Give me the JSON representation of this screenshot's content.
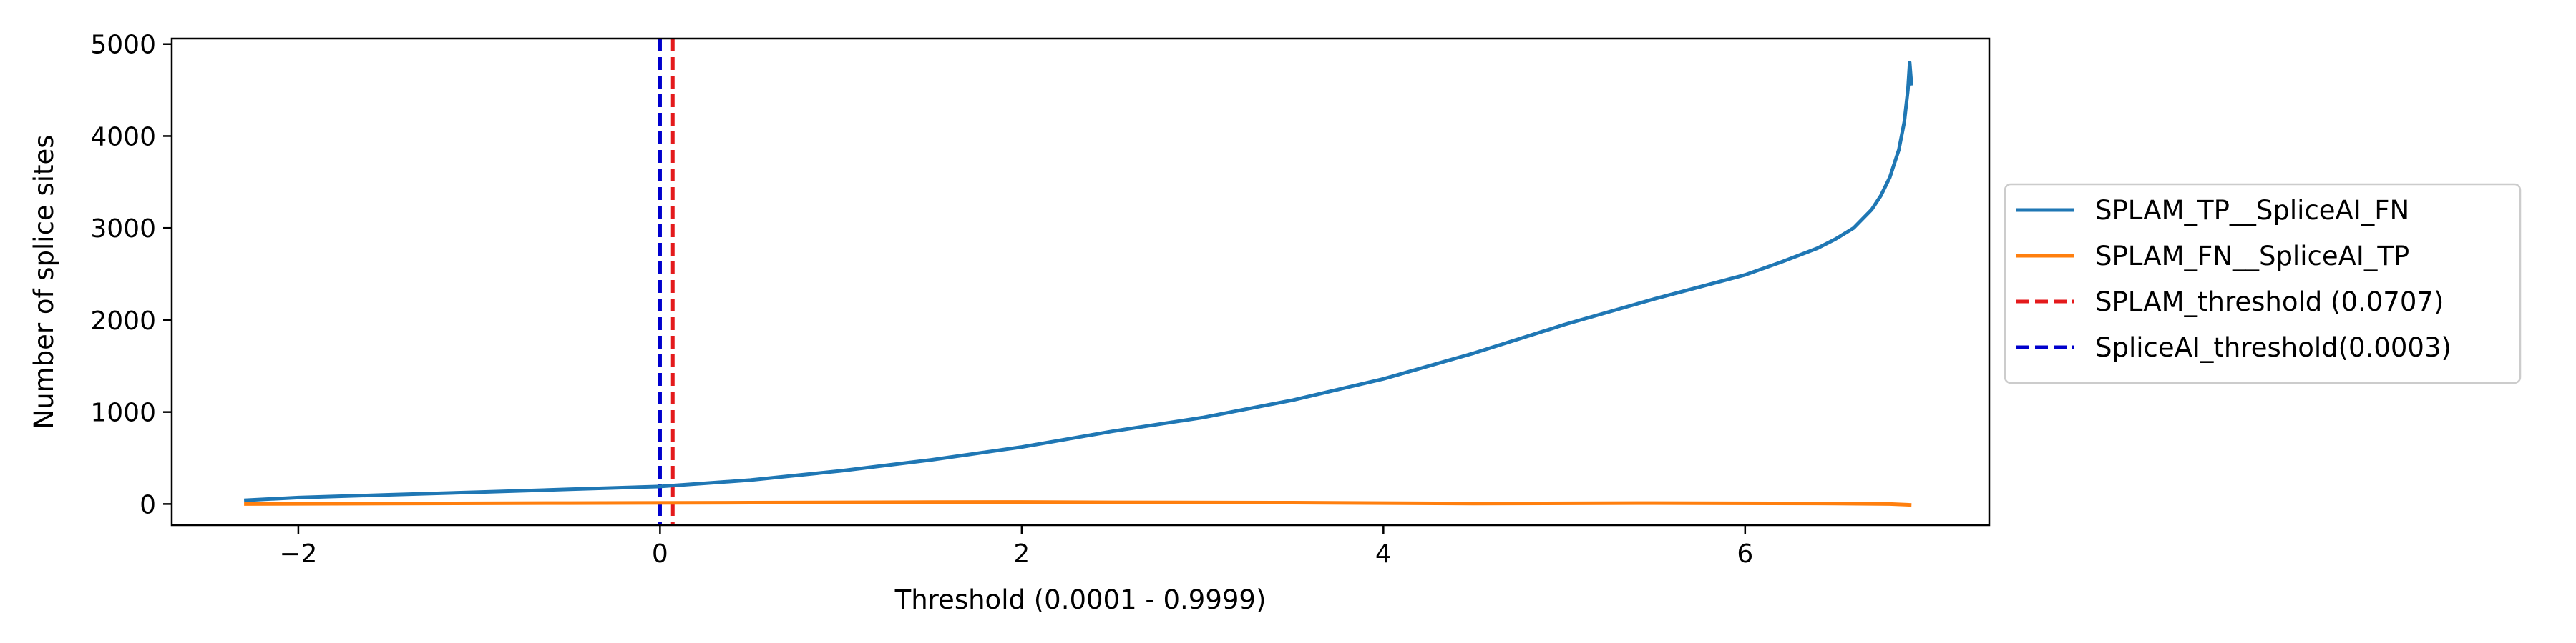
{
  "chart_data": {
    "type": "line",
    "title": "",
    "xlabel": "Threshold (0.0001 - 0.9999)",
    "ylabel": "Number of splice sites",
    "xlim": [
      -2.7,
      7.35
    ],
    "ylim": [
      -230,
      5060
    ],
    "xticks": [
      -2,
      0,
      2,
      4,
      6
    ],
    "xtick_labels": [
      "−2",
      "0",
      "2",
      "4",
      "6"
    ],
    "yticks": [
      0,
      1000,
      2000,
      3000,
      4000,
      5000
    ],
    "ytick_labels": [
      "0",
      "1000",
      "2000",
      "3000",
      "4000",
      "5000"
    ],
    "grid": false,
    "legend": "outside-right",
    "series": [
      {
        "name": "SPLAM_TP__SpliceAI_FN",
        "color": "#1f77b4",
        "style": "solid",
        "x": [
          -2.3,
          -2.0,
          -1.5,
          -1.0,
          -0.5,
          0.0,
          0.5,
          1.0,
          1.5,
          2.0,
          2.5,
          3.0,
          3.5,
          4.0,
          4.5,
          5.0,
          5.5,
          6.0,
          6.2,
          6.4,
          6.5,
          6.6,
          6.7,
          6.75,
          6.8,
          6.85,
          6.88,
          6.9,
          6.91,
          6.92
        ],
        "y": [
          40,
          70,
          100,
          130,
          160,
          190,
          260,
          360,
          480,
          620,
          790,
          940,
          1130,
          1360,
          1640,
          1950,
          2230,
          2490,
          2630,
          2780,
          2880,
          3000,
          3200,
          3350,
          3550,
          3850,
          4150,
          4500,
          4800,
          4550
        ]
      },
      {
        "name": "SPLAM_FN__SpliceAI_TP",
        "color": "#ff7f0e",
        "style": "solid",
        "x": [
          -2.3,
          -1.5,
          -0.5,
          0.5,
          1.5,
          2.0,
          2.5,
          3.5,
          4.5,
          5.5,
          6.5,
          6.8,
          6.92
        ],
        "y": [
          0,
          5,
          10,
          15,
          20,
          22,
          18,
          15,
          5,
          10,
          5,
          0,
          -10
        ]
      }
    ],
    "vlines": [
      {
        "name": "SPLAM_threshold (0.0707)",
        "x": 0.0707,
        "color": "#e41a1c",
        "style": "dashed"
      },
      {
        "name": "SpliceAI_threshold(0.0003)",
        "x": 0.0003,
        "color": "#0000cc",
        "style": "dashed"
      }
    ]
  }
}
